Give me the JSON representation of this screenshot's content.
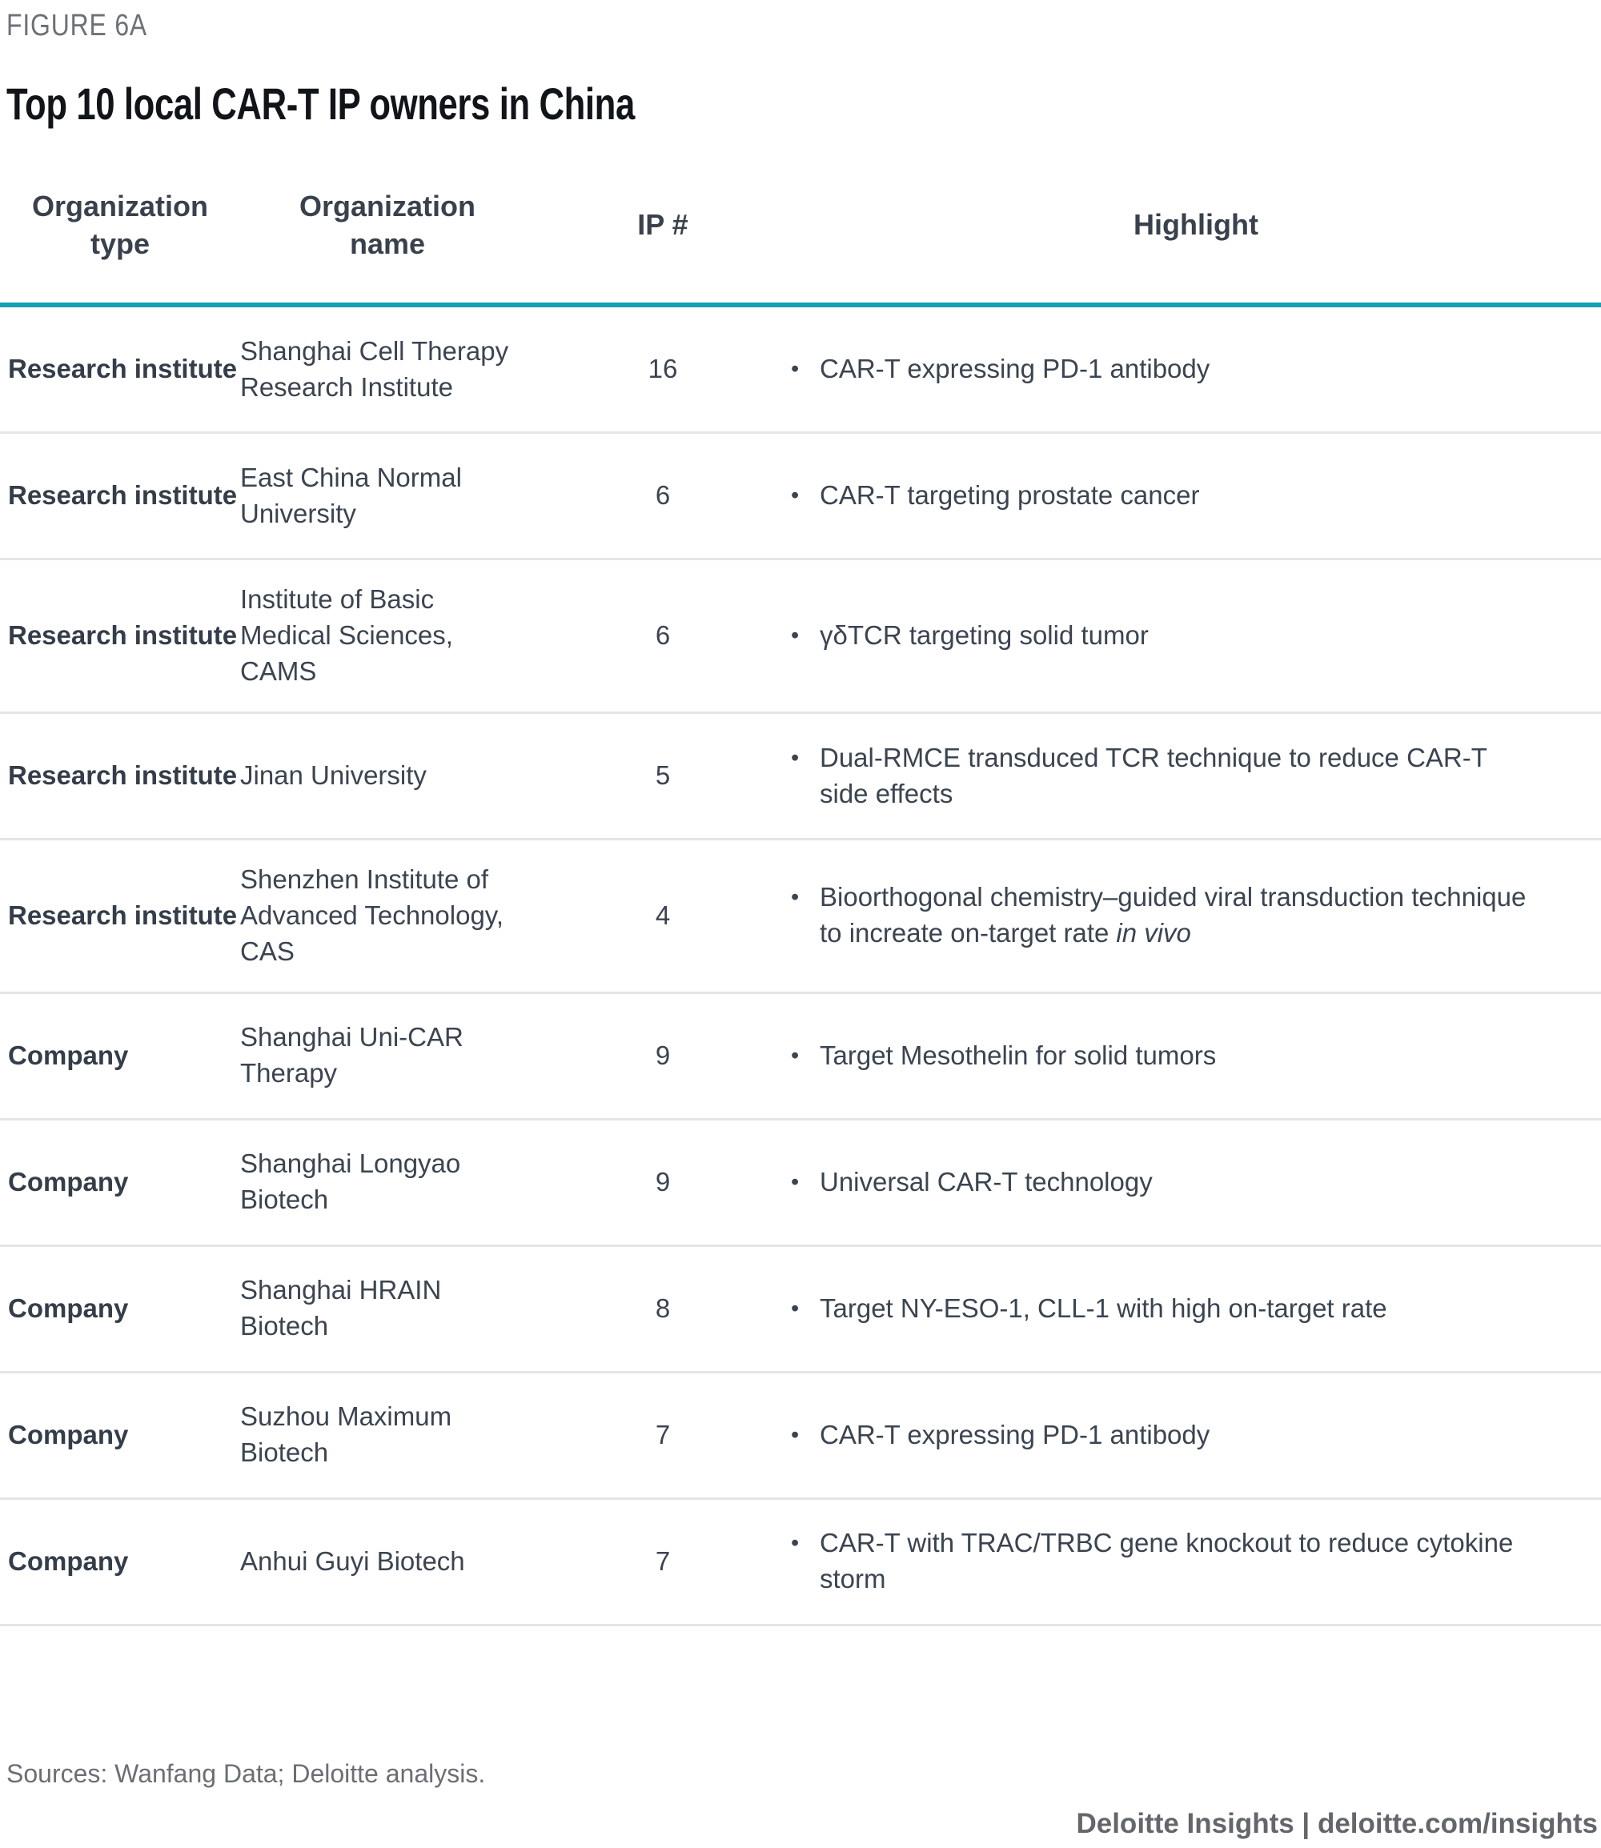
{
  "figure_label": "FIGURE 6A",
  "title": "Top 10 local CAR-T IP owners in China",
  "table": {
    "headers": [
      "Organization type",
      "Organization name",
      "IP #",
      "Highlight"
    ],
    "bullet": "•",
    "rows": [
      {
        "type": "Research institute",
        "name": "Shanghai Cell Therapy Research Institute",
        "ip": "16",
        "highlight": "CAR-T expressing PD-1 antibody",
        "highlight_italic": ""
      },
      {
        "type": "Research institute",
        "name": "East China Normal University",
        "ip": "6",
        "highlight": "CAR-T targeting prostate cancer",
        "highlight_italic": ""
      },
      {
        "type": "Research institute",
        "name": "Institute of Basic Medical Sciences, CAMS",
        "ip": "6",
        "highlight": "γδTCR targeting solid tumor",
        "highlight_italic": ""
      },
      {
        "type": "Research institute",
        "name": "Jinan University",
        "ip": "5",
        "highlight": "Dual-RMCE transduced TCR technique to reduce CAR-T side effects",
        "highlight_italic": ""
      },
      {
        "type": "Research institute",
        "name": "Shenzhen Institute of Advanced Technology, CAS",
        "ip": "4",
        "highlight": "Bioorthogonal chemistry–guided viral transduction technique to increate on-target rate",
        "highlight_italic": "in vivo"
      },
      {
        "type": "Company",
        "name": "Shanghai Uni-CAR Therapy",
        "ip": "9",
        "highlight": "Target Mesothelin for solid tumors",
        "highlight_italic": ""
      },
      {
        "type": "Company",
        "name": "Shanghai Longyao Biotech",
        "ip": "9",
        "highlight": "Universal CAR-T technology",
        "highlight_italic": ""
      },
      {
        "type": "Company",
        "name": "Shanghai HRAIN Biotech",
        "ip": "8",
        "highlight": "Target NY-ESO-1, CLL-1 with high on-target rate",
        "highlight_italic": ""
      },
      {
        "type": "Company",
        "name": "Suzhou Maximum Biotech",
        "ip": "7",
        "highlight": "CAR-T expressing PD-1 antibody",
        "highlight_italic": ""
      },
      {
        "type": "Company",
        "name": "Anhui Guyi Biotech",
        "ip": "7",
        "highlight": "CAR-T with TRAC/TRBC gene knockout to reduce cytokine storm",
        "highlight_italic": ""
      }
    ]
  },
  "footer": {
    "sources": "Sources: Wanfang Data; Deloitte analysis.",
    "brand": "Deloitte Insights | deloitte.com/insights"
  },
  "colors": {
    "header_rule_teal": "#189EB2",
    "row_divider": "#E5E5E5",
    "body_text": "#3B4450",
    "muted_text": "#6B6F74",
    "brand_text": "#63666A"
  }
}
